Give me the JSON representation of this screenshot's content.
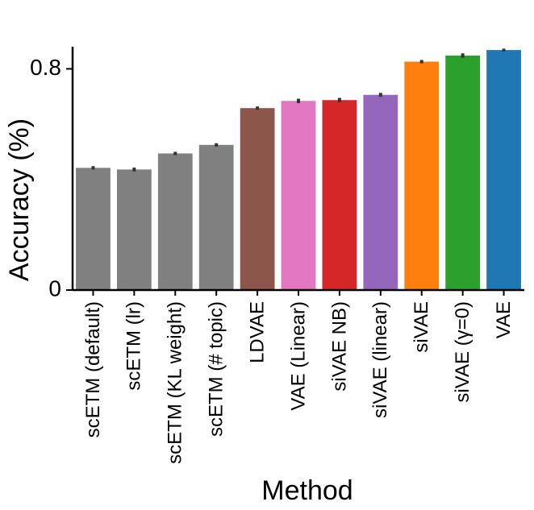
{
  "chart_data": {
    "type": "bar",
    "title": "",
    "xlabel": "Method",
    "ylabel": "Accuracy (%)",
    "ylim": [
      0,
      0.88
    ],
    "yticks": [
      0,
      0.8
    ],
    "ytick_labels": [
      "0",
      "0.8"
    ],
    "grid": false,
    "legend": "none",
    "categories": [
      "scETM (default)",
      "scETM (lr)",
      "scETM (KL weight)",
      "scETM (# topic)",
      "LDVAE",
      "VAE  (Linear)",
      "siVAE NB)",
      "siVAE (linear)",
      "siVAE",
      "siVAE  (γ=0)",
      "VAE"
    ],
    "values": [
      0.442,
      0.436,
      0.494,
      0.525,
      0.658,
      0.684,
      0.687,
      0.706,
      0.826,
      0.848,
      0.868
    ],
    "errors": [
      0.006,
      0.007,
      0.006,
      0.006,
      0.006,
      0.008,
      0.008,
      0.007,
      0.006,
      0.008,
      0.005
    ],
    "colors": [
      "#808080",
      "#808080",
      "#808080",
      "#808080",
      "#8c564b",
      "#e377c2",
      "#d62728",
      "#9467bd",
      "#ff7f0e",
      "#2ca02c",
      "#1f77b4"
    ]
  }
}
